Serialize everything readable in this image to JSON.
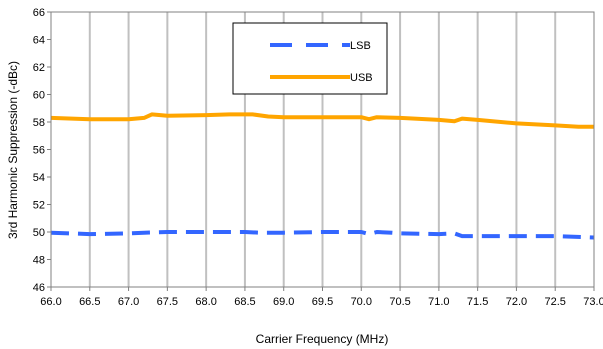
{
  "chart_data": {
    "type": "line",
    "title": "",
    "xlabel": "Carrier Frequency (MHz)",
    "ylabel": "3rd Harmonic Suppression (-dBc)",
    "xlim": [
      66.0,
      73.0
    ],
    "ylim": [
      46,
      66
    ],
    "x_ticks": [
      "66.0",
      "66.5",
      "67.0",
      "67.5",
      "68.0",
      "68.5",
      "69.0",
      "69.5",
      "70.0",
      "70.5",
      "71.0",
      "71.5",
      "72.0",
      "72.5",
      "73.0"
    ],
    "y_ticks": [
      "46",
      "48",
      "50",
      "52",
      "54",
      "56",
      "58",
      "60",
      "62",
      "64",
      "66"
    ],
    "grid": "vertical",
    "legend_position": "top-center",
    "series": [
      {
        "name": "LSB",
        "color": "#3366ff",
        "style": "dashed",
        "x": [
          66.0,
          66.5,
          67.0,
          67.2,
          67.5,
          68.0,
          68.5,
          68.7,
          69.0,
          69.5,
          70.0,
          70.1,
          70.2,
          70.4,
          70.5,
          71.0,
          71.2,
          71.3,
          71.5,
          72.0,
          72.5,
          73.0
        ],
        "y": [
          49.95,
          49.85,
          49.9,
          49.95,
          50.0,
          50.0,
          50.0,
          49.95,
          49.95,
          50.0,
          50.0,
          49.85,
          50.0,
          49.95,
          49.9,
          49.85,
          49.9,
          49.7,
          49.7,
          49.7,
          49.7,
          49.6
        ]
      },
      {
        "name": "USB",
        "color": "#ffa500",
        "style": "solid",
        "x": [
          66.0,
          66.5,
          67.0,
          67.2,
          67.3,
          67.5,
          68.0,
          68.3,
          68.6,
          68.8,
          69.0,
          69.5,
          70.0,
          70.1,
          70.2,
          70.5,
          71.0,
          71.2,
          71.3,
          71.5,
          72.0,
          72.5,
          72.8,
          73.0
        ],
        "y": [
          58.3,
          58.2,
          58.2,
          58.3,
          58.55,
          58.45,
          58.5,
          58.55,
          58.55,
          58.4,
          58.35,
          58.35,
          58.35,
          58.2,
          58.35,
          58.3,
          58.15,
          58.05,
          58.25,
          58.15,
          57.9,
          57.75,
          57.65,
          57.65
        ]
      }
    ]
  }
}
